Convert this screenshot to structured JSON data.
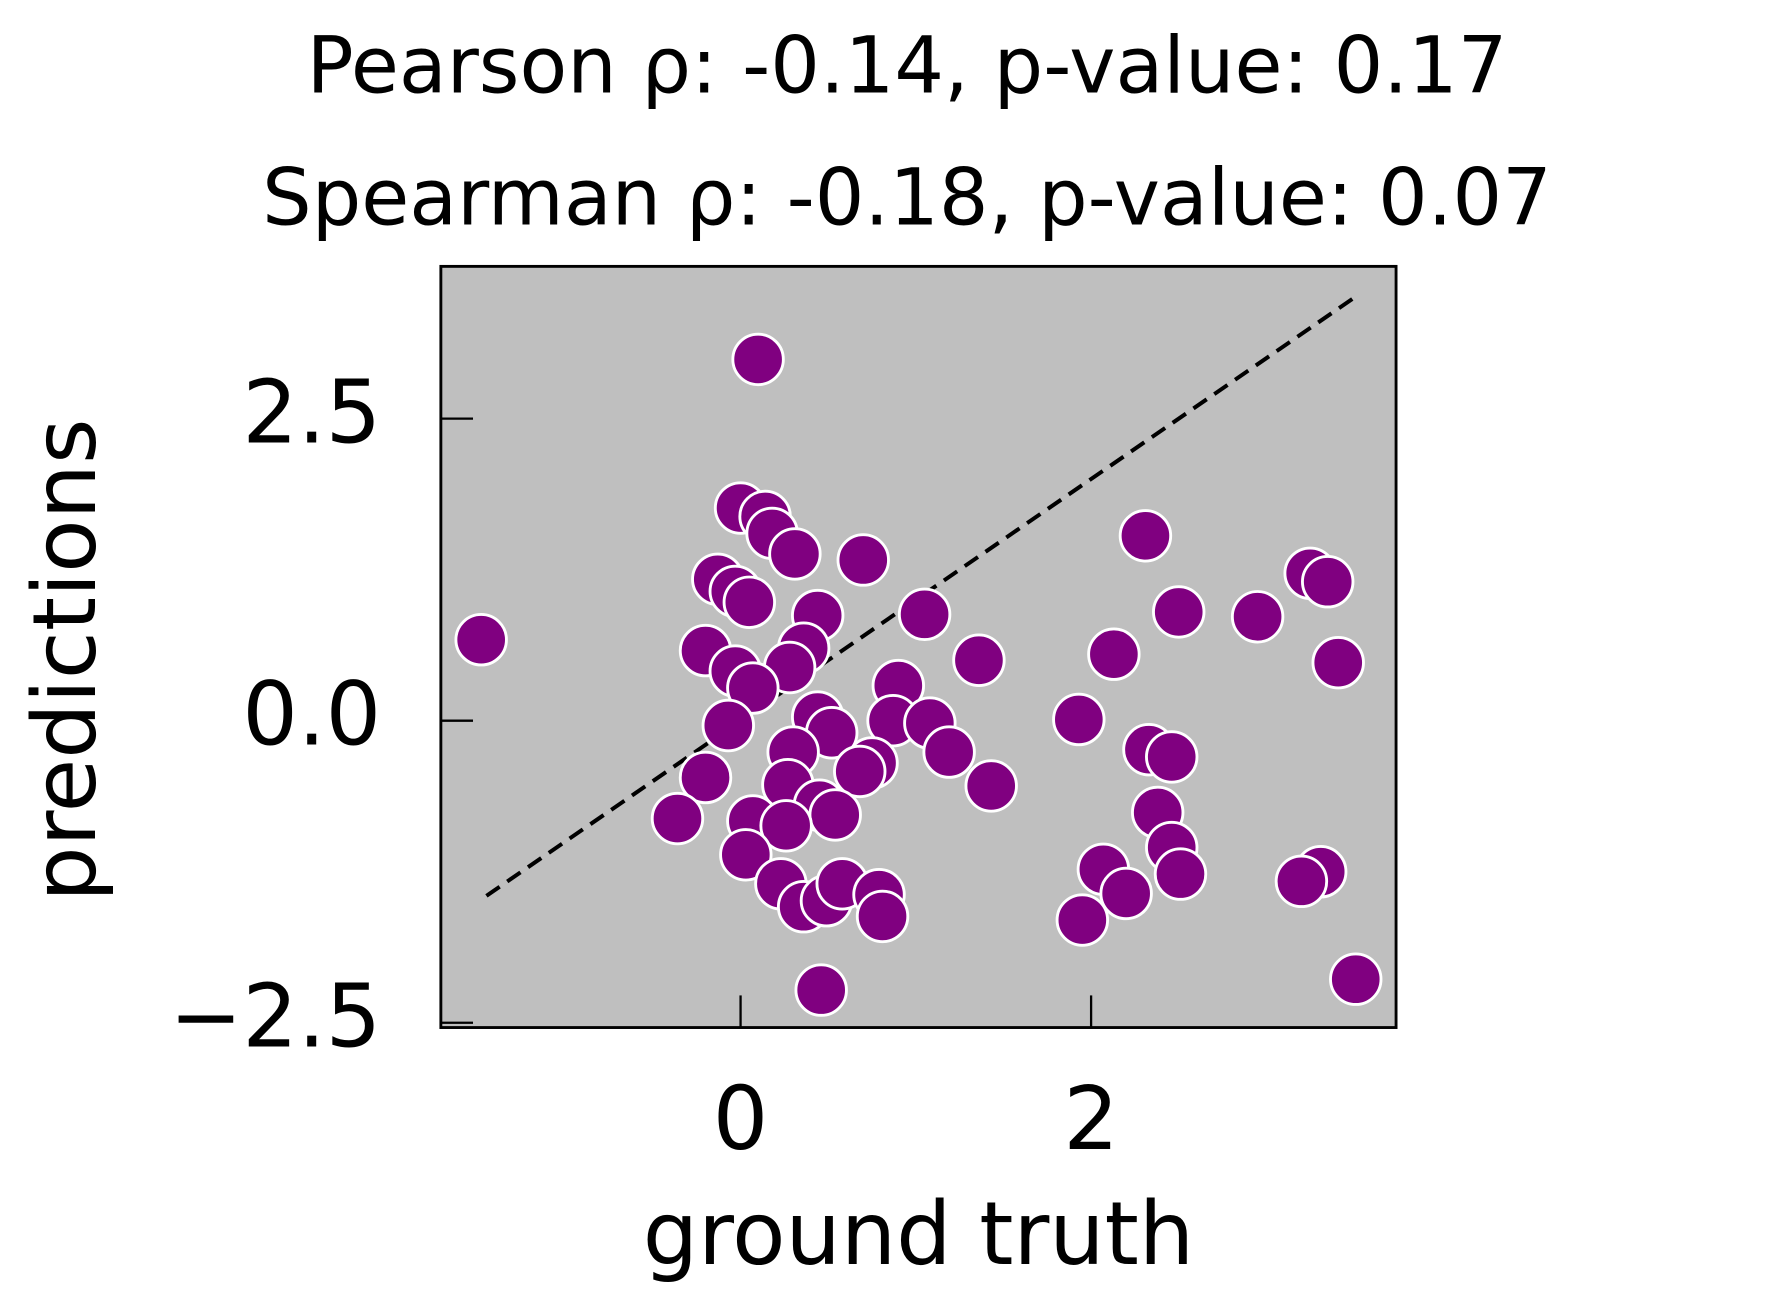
{
  "chart_data": {
    "type": "scatter",
    "title": [
      "Pearson ρ: -0.14, p-value: 0.17",
      "Spearman ρ: -0.18, p-value: 0.07"
    ],
    "x_label": "ground truth",
    "y_label": "predictions",
    "xlim": [
      -1.71,
      3.74
    ],
    "ylim": [
      -2.54,
      3.76
    ],
    "xticks": [
      0,
      2
    ],
    "yticks": [
      {
        "value": -2.5,
        "label": "−2.5"
      },
      {
        "value": 0,
        "label": "0.0"
      },
      2.5
    ],
    "color": "#800080",
    "background": "#bfbfbf",
    "reference_line": {
      "x": [
        -1.45,
        3.5
      ],
      "y": [
        -1.45,
        3.5
      ]
    },
    "x": [
      -1.48,
      0.1,
      0.0,
      0.14,
      0.18,
      0.31,
      0.7,
      -0.13,
      -0.03,
      0.05,
      0.44,
      1.05,
      -0.2,
      0.36,
      -0.03,
      0.28,
      0.07,
      1.36,
      0.9,
      -0.07,
      0.44,
      0.52,
      0.87,
      1.08,
      1.19,
      0.3,
      0.75,
      0.68,
      -0.2,
      0.27,
      1.43,
      -0.36,
      0.45,
      0.54,
      0.07,
      0.26,
      0.03,
      0.23,
      0.36,
      0.49,
      0.58,
      0.79,
      0.81,
      0.46,
      1.93,
      2.13,
      2.31,
      2.5,
      2.95,
      3.25,
      3.35,
      3.41,
      2.33,
      2.46,
      2.38,
      2.46,
      2.51,
      2.07,
      2.2,
      1.95,
      3.31,
      3.2,
      3.51
    ],
    "y": [
      0.67,
      2.99,
      1.76,
      1.69,
      1.55,
      1.38,
      1.33,
      1.17,
      1.07,
      0.98,
      0.87,
      0.88,
      0.58,
      0.6,
      0.41,
      0.44,
      0.27,
      0.5,
      0.29,
      -0.04,
      0.03,
      -0.1,
      0.0,
      -0.02,
      -0.26,
      -0.26,
      -0.35,
      -0.42,
      -0.47,
      -0.53,
      -0.54,
      -0.81,
      -0.7,
      -0.78,
      -0.83,
      -0.87,
      -1.11,
      -1.35,
      -1.54,
      -1.49,
      -1.35,
      -1.44,
      -1.62,
      -2.23,
      0.01,
      0.55,
      1.53,
      0.9,
      0.86,
      1.22,
      1.15,
      0.48,
      -0.24,
      -0.3,
      -0.76,
      -1.05,
      -1.27,
      -1.23,
      -1.43,
      -1.65,
      -1.25,
      -1.33,
      -2.14
    ]
  }
}
